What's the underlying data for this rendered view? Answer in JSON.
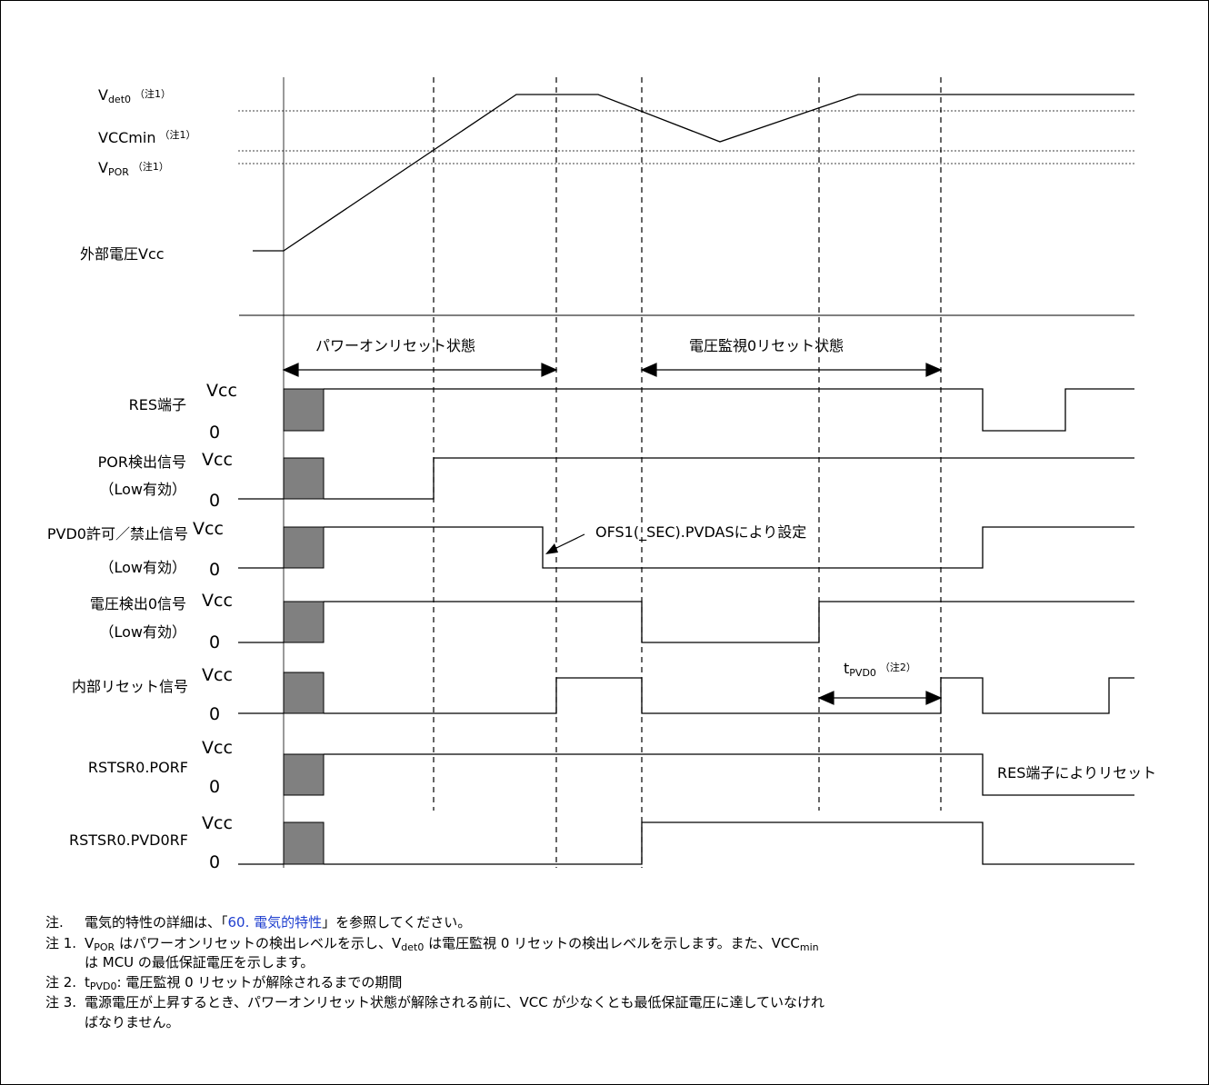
{
  "analog": {
    "levels": {
      "vdet0": {
        "main": "V",
        "sub": "det0",
        "note": "（注1）"
      },
      "vccmin": {
        "main": "VCCmin",
        "note": "（注1）"
      },
      "vpor": {
        "main": "V",
        "sub": "POR",
        "note": "（注1）"
      }
    },
    "vcc_label": "外部電圧Vcc",
    "por_state": "パワーオンリセット状態",
    "pvd0_state": "電圧監視0リセット状態"
  },
  "signals": [
    {
      "id": "res",
      "line1": "RES端子",
      "line2": ""
    },
    {
      "id": "por",
      "line1": "POR検出信号",
      "line2": "（Low有効）"
    },
    {
      "id": "pvd0en",
      "line1": "PVD0許可／禁止信号",
      "line2": "（Low有効）"
    },
    {
      "id": "vdet",
      "line1": "電圧検出0信号",
      "line2": "（Low有効）"
    },
    {
      "id": "irst",
      "line1": "内部リセット信号",
      "line2": ""
    },
    {
      "id": "porf",
      "line1": "RSTSR0.PORF",
      "line2": ""
    },
    {
      "id": "pvd0rf",
      "line1": "RSTSR0.PVD0RF",
      "line2": ""
    }
  ],
  "level_labels": {
    "high": "Vcc",
    "low": "0"
  },
  "annotations": {
    "ofs": "OFS1(_SEC).PVDASにより設定",
    "tpvd0": {
      "main": "t",
      "sub": "PVD0",
      "note": "（注2）"
    },
    "res_reset": "RES端子によりリセット"
  },
  "notes": [
    {
      "num": "注.",
      "before": "電気的特性の詳細は、「",
      "link": "60. 電気的特性",
      "after": "」を参照してください。"
    },
    {
      "num": "注 1.",
      "segments": [
        {
          "t": "V"
        },
        {
          "t": "POR",
          "sub": true
        },
        {
          "t": " はパワーオンリセットの検出レベルを示し、V"
        },
        {
          "t": "det0",
          "sub": true
        },
        {
          "t": " は電圧監視 0 リセットの検出レベルを示します。また、VCC"
        },
        {
          "t": "min",
          "sub": true
        }
      ],
      "line2": "は MCU の最低保証電圧を示します。"
    },
    {
      "num": "注 2.",
      "segments": [
        {
          "t": "t"
        },
        {
          "t": "PVD0",
          "sub": true
        },
        {
          "t": ": 電圧監視 0 リセットが解除されるまでの期間"
        }
      ]
    },
    {
      "num": "注 3.",
      "text": "電源電圧が上昇するとき、パワーオンリセット状態が解除される前に、VCC が少なくとも最低保証電圧に達していなけれ",
      "line2": "ばなりません。"
    }
  ]
}
